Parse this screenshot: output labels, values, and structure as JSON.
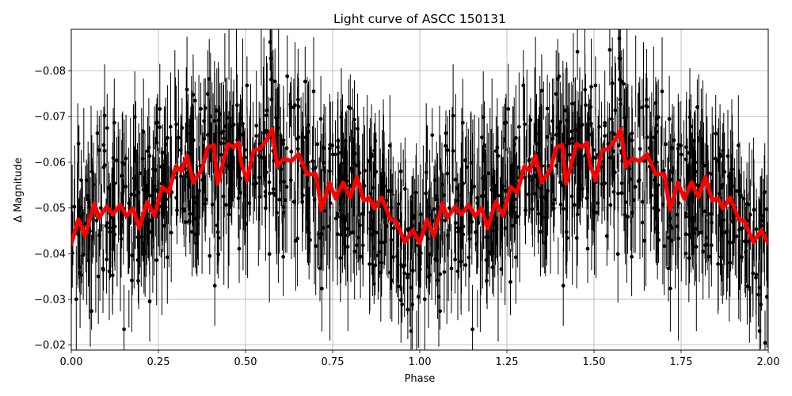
{
  "chart_data": {
    "type": "scatter",
    "title": "Light curve of ASCC 150131",
    "xlabel": "Phase",
    "ylabel": "Δ Magnitude",
    "xlim": [
      0.0,
      2.0
    ],
    "ylim": [
      -0.0189,
      -0.0891
    ],
    "y_inverted": true,
    "grid": true,
    "legend": null,
    "x_ticks": [
      "0.00",
      "0.25",
      "0.50",
      "0.75",
      "1.00",
      "1.25",
      "1.50",
      "1.75",
      "2.00"
    ],
    "x_tick_values": [
      0.0,
      0.25,
      0.5,
      0.75,
      1.0,
      1.25,
      1.5,
      1.75,
      2.0
    ],
    "y_ticks": [
      "−0.02",
      "−0.03",
      "−0.04",
      "−0.05",
      "−0.06",
      "−0.07",
      "−0.08"
    ],
    "y_tick_values": [
      -0.02,
      -0.03,
      -0.04,
      -0.05,
      -0.06,
      -0.07,
      -0.08
    ],
    "colors": {
      "data_points": "#000000",
      "binned_curve": "#ff0000",
      "grid": "#b0b0b0"
    },
    "series": [
      {
        "name": "observations",
        "style": "black dots with vertical error bars",
        "description": "Dense phase-folded photometry; points scatter between about -0.019 and -0.089 (clipped by axes), centered near -0.05, repeated for phase 0-2",
        "approx_center": -0.05,
        "approx_spread": 0.012
      },
      {
        "name": "binned light curve",
        "style": "thick red line",
        "phase": [
          0.0,
          0.02,
          0.04,
          0.066,
          0.08,
          0.102,
          0.12,
          0.14,
          0.159,
          0.177,
          0.195,
          0.218,
          0.239,
          0.261,
          0.28,
          0.3,
          0.316,
          0.332,
          0.35,
          0.375,
          0.391,
          0.409,
          0.42,
          0.45,
          0.466,
          0.48,
          0.489,
          0.505,
          0.523,
          0.541,
          0.559,
          0.577,
          0.591,
          0.609,
          0.632,
          0.652,
          0.677,
          0.702,
          0.718,
          0.741,
          0.759,
          0.78,
          0.8,
          0.82,
          0.839,
          0.855,
          0.87,
          0.891,
          0.916,
          0.932,
          0.957,
          0.98,
          1.0
        ],
        "values": [
          -0.042,
          -0.0475,
          -0.0439,
          -0.051,
          -0.0479,
          -0.0503,
          -0.0486,
          -0.0507,
          -0.0482,
          -0.05,
          -0.0455,
          -0.0514,
          -0.0483,
          -0.0546,
          -0.0534,
          -0.0591,
          -0.0581,
          -0.0615,
          -0.0556,
          -0.0584,
          -0.0632,
          -0.0638,
          -0.0553,
          -0.064,
          -0.0633,
          -0.0643,
          -0.0594,
          -0.056,
          -0.0626,
          -0.0629,
          -0.0647,
          -0.0673,
          -0.0591,
          -0.0608,
          -0.0603,
          -0.0618,
          -0.0574,
          -0.0574,
          -0.0496,
          -0.0555,
          -0.052,
          -0.0556,
          -0.0523,
          -0.0568,
          -0.0516,
          -0.0522,
          -0.0499,
          -0.0523,
          -0.0475,
          -0.0471,
          -0.0425,
          -0.0451,
          -0.0423
        ],
        "repeats_with_period": 1.0
      }
    ]
  }
}
